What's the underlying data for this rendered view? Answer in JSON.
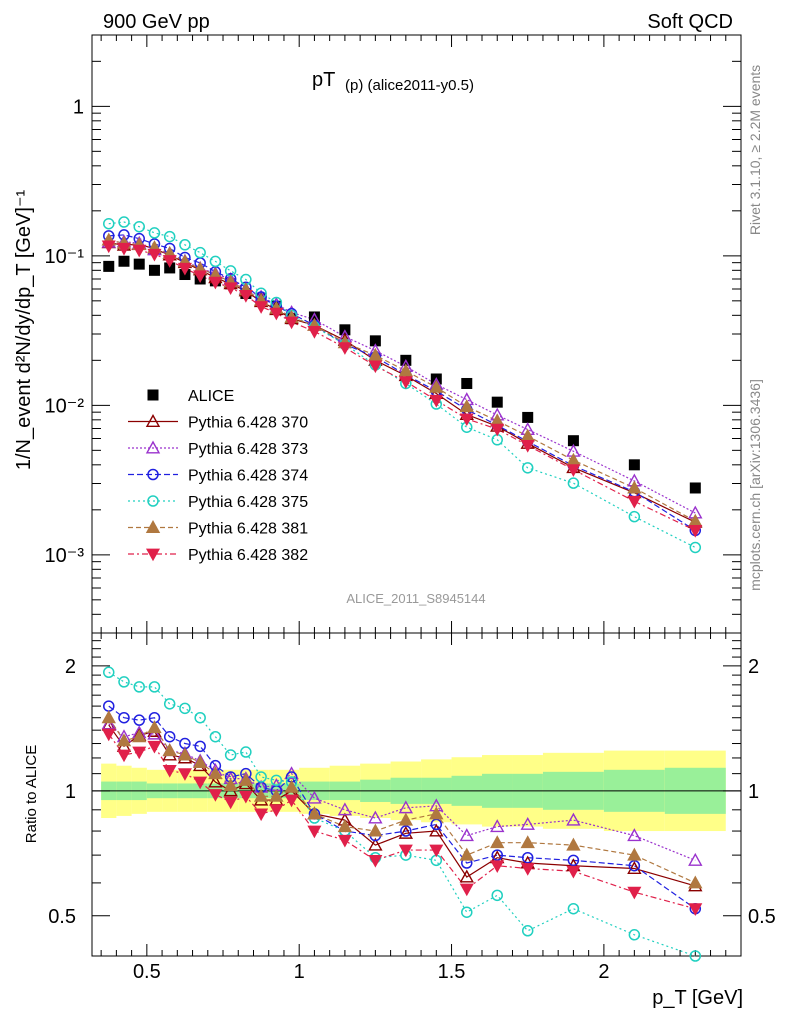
{
  "header": {
    "left": "900 GeV pp",
    "right": "Soft QCD",
    "plot_title_main": "pT",
    "plot_title_sub": "(p) (alice2011-y0.5)",
    "analysis_id": "ALICE_2011_S8945144",
    "side_label_top": "Rivet 3.1.10, ≥ 2.2M events",
    "side_label_bottom": "mcplots.cern.ch [arXiv:1306.3436]"
  },
  "axes": {
    "ylabel_main": "1/N_event d²N/dy/dp_T [GeV]⁻¹",
    "ylabel_ratio": "Ratio to ALICE",
    "xlabel": "p_T [GeV]",
    "main_ytick_labels": [
      "10⁻³",
      "10⁻²",
      "10⁻¹",
      "1"
    ],
    "ratio_ytick_labels": [
      "0.5",
      "1",
      "2"
    ],
    "xtick_labels": [
      "0.5",
      "1",
      "1.5",
      "2"
    ]
  },
  "legend": [
    {
      "label": "ALICE"
    },
    {
      "label": "Pythia 6.428 370"
    },
    {
      "label": "Pythia 6.428 373"
    },
    {
      "label": "Pythia 6.428 374"
    },
    {
      "label": "Pythia 6.428 375"
    },
    {
      "label": "Pythia 6.428 381"
    },
    {
      "label": "Pythia 6.428 382"
    }
  ],
  "chart_data": {
    "type": "scatter",
    "x_scale": "linear",
    "y_scale": "log",
    "xlim": [
      0.32,
      2.45
    ],
    "ylim": [
      0.0003,
      3.0
    ],
    "ratio_ylim": [
      0.4,
      2.4
    ],
    "ratio_y_scale": "log",
    "grid": false,
    "legend_position": "left-middle",
    "x": [
      0.375,
      0.425,
      0.475,
      0.525,
      0.575,
      0.625,
      0.675,
      0.725,
      0.775,
      0.825,
      0.875,
      0.925,
      0.975,
      1.05,
      1.15,
      1.25,
      1.35,
      1.45,
      1.55,
      1.65,
      1.75,
      1.9,
      2.1,
      2.3
    ],
    "x_edges": [
      0.35,
      0.4,
      0.45,
      0.5,
      0.55,
      0.6,
      0.65,
      0.7,
      0.75,
      0.8,
      0.85,
      0.9,
      0.95,
      1.0,
      1.1,
      1.2,
      1.3,
      1.4,
      1.5,
      1.6,
      1.7,
      1.8,
      2.0,
      2.2,
      2.4
    ],
    "data": {
      "name": "ALICE",
      "color": "#000000",
      "values": [
        0.085,
        0.092,
        0.088,
        0.08,
        0.083,
        0.075,
        0.07,
        0.068,
        0.065,
        0.056,
        0.052,
        0.046,
        0.038,
        0.039,
        0.032,
        0.027,
        0.02,
        0.015,
        0.014,
        0.0105,
        0.0083,
        0.0058,
        0.004,
        0.0028
      ]
    },
    "band_inner": [
      0.95,
      0.95,
      0.95,
      0.96,
      0.96,
      0.96,
      0.96,
      0.96,
      0.96,
      0.96,
      0.96,
      0.96,
      0.96,
      0.95,
      0.95,
      0.94,
      0.93,
      0.93,
      0.92,
      0.91,
      0.91,
      0.9,
      0.89,
      0.88
    ],
    "band_outer": [
      0.86,
      0.87,
      0.88,
      0.89,
      0.89,
      0.89,
      0.89,
      0.89,
      0.89,
      0.89,
      0.89,
      0.89,
      0.89,
      0.88,
      0.87,
      0.86,
      0.85,
      0.84,
      0.83,
      0.82,
      0.82,
      0.81,
      0.8,
      0.8
    ],
    "series": [
      {
        "name": "Pythia 6.428 370",
        "color": "#8b0000",
        "dash": "",
        "marker": "tri-up-open",
        "ratio": [
          1.44,
          1.28,
          1.36,
          1.39,
          1.22,
          1.2,
          1.15,
          1.05,
          1.0,
          1.04,
          0.95,
          0.95,
          1.0,
          0.88,
          0.85,
          0.74,
          0.79,
          0.8,
          0.62,
          0.69,
          0.67,
          0.66,
          0.65,
          0.59
        ]
      },
      {
        "name": "Pythia 6.428 373",
        "color": "#9a32cd",
        "dash": "2,2",
        "marker": "tri-up-open",
        "ratio": [
          1.45,
          1.35,
          1.38,
          1.37,
          1.25,
          1.23,
          1.18,
          1.12,
          1.07,
          1.07,
          1.02,
          1.03,
          1.1,
          0.96,
          0.9,
          0.86,
          0.91,
          0.92,
          0.78,
          0.82,
          0.83,
          0.85,
          0.78,
          0.68
        ]
      },
      {
        "name": "Pythia 6.428 374",
        "color": "#2020e0",
        "dash": "6,3",
        "marker": "circle-open",
        "ratio": [
          1.6,
          1.5,
          1.48,
          1.5,
          1.35,
          1.3,
          1.28,
          1.15,
          1.08,
          1.1,
          1.02,
          1.0,
          1.08,
          0.88,
          0.8,
          0.78,
          0.8,
          0.83,
          0.67,
          0.7,
          0.69,
          0.68,
          0.66,
          0.52
        ]
      },
      {
        "name": "Pythia 6.428 375",
        "color": "#20d0c0",
        "dash": "2,3",
        "marker": "circle-open",
        "ratio": [
          1.93,
          1.83,
          1.78,
          1.78,
          1.62,
          1.58,
          1.5,
          1.35,
          1.22,
          1.24,
          1.08,
          1.06,
          1.05,
          0.86,
          0.8,
          0.69,
          0.7,
          0.68,
          0.51,
          0.56,
          0.46,
          0.52,
          0.45,
          0.4
        ]
      },
      {
        "name": "Pythia 6.428 381",
        "color": "#b07840",
        "dash": "5,3",
        "marker": "tri-up-filled",
        "ratio": [
          1.5,
          1.32,
          1.35,
          1.42,
          1.25,
          1.22,
          1.17,
          1.1,
          1.03,
          1.06,
          0.97,
          0.97,
          1.02,
          0.88,
          0.82,
          0.8,
          0.85,
          0.88,
          0.7,
          0.75,
          0.75,
          0.74,
          0.7,
          0.6
        ]
      },
      {
        "name": "Pythia 6.428 382",
        "color": "#e0204a",
        "dash": "6,3,2,3",
        "marker": "tri-down-filled",
        "ratio": [
          1.37,
          1.22,
          1.24,
          1.28,
          1.12,
          1.1,
          1.05,
          0.98,
          0.94,
          0.97,
          0.88,
          0.9,
          0.95,
          0.8,
          0.76,
          0.68,
          0.72,
          0.72,
          0.58,
          0.66,
          0.65,
          0.64,
          0.57,
          0.52
        ]
      }
    ]
  }
}
